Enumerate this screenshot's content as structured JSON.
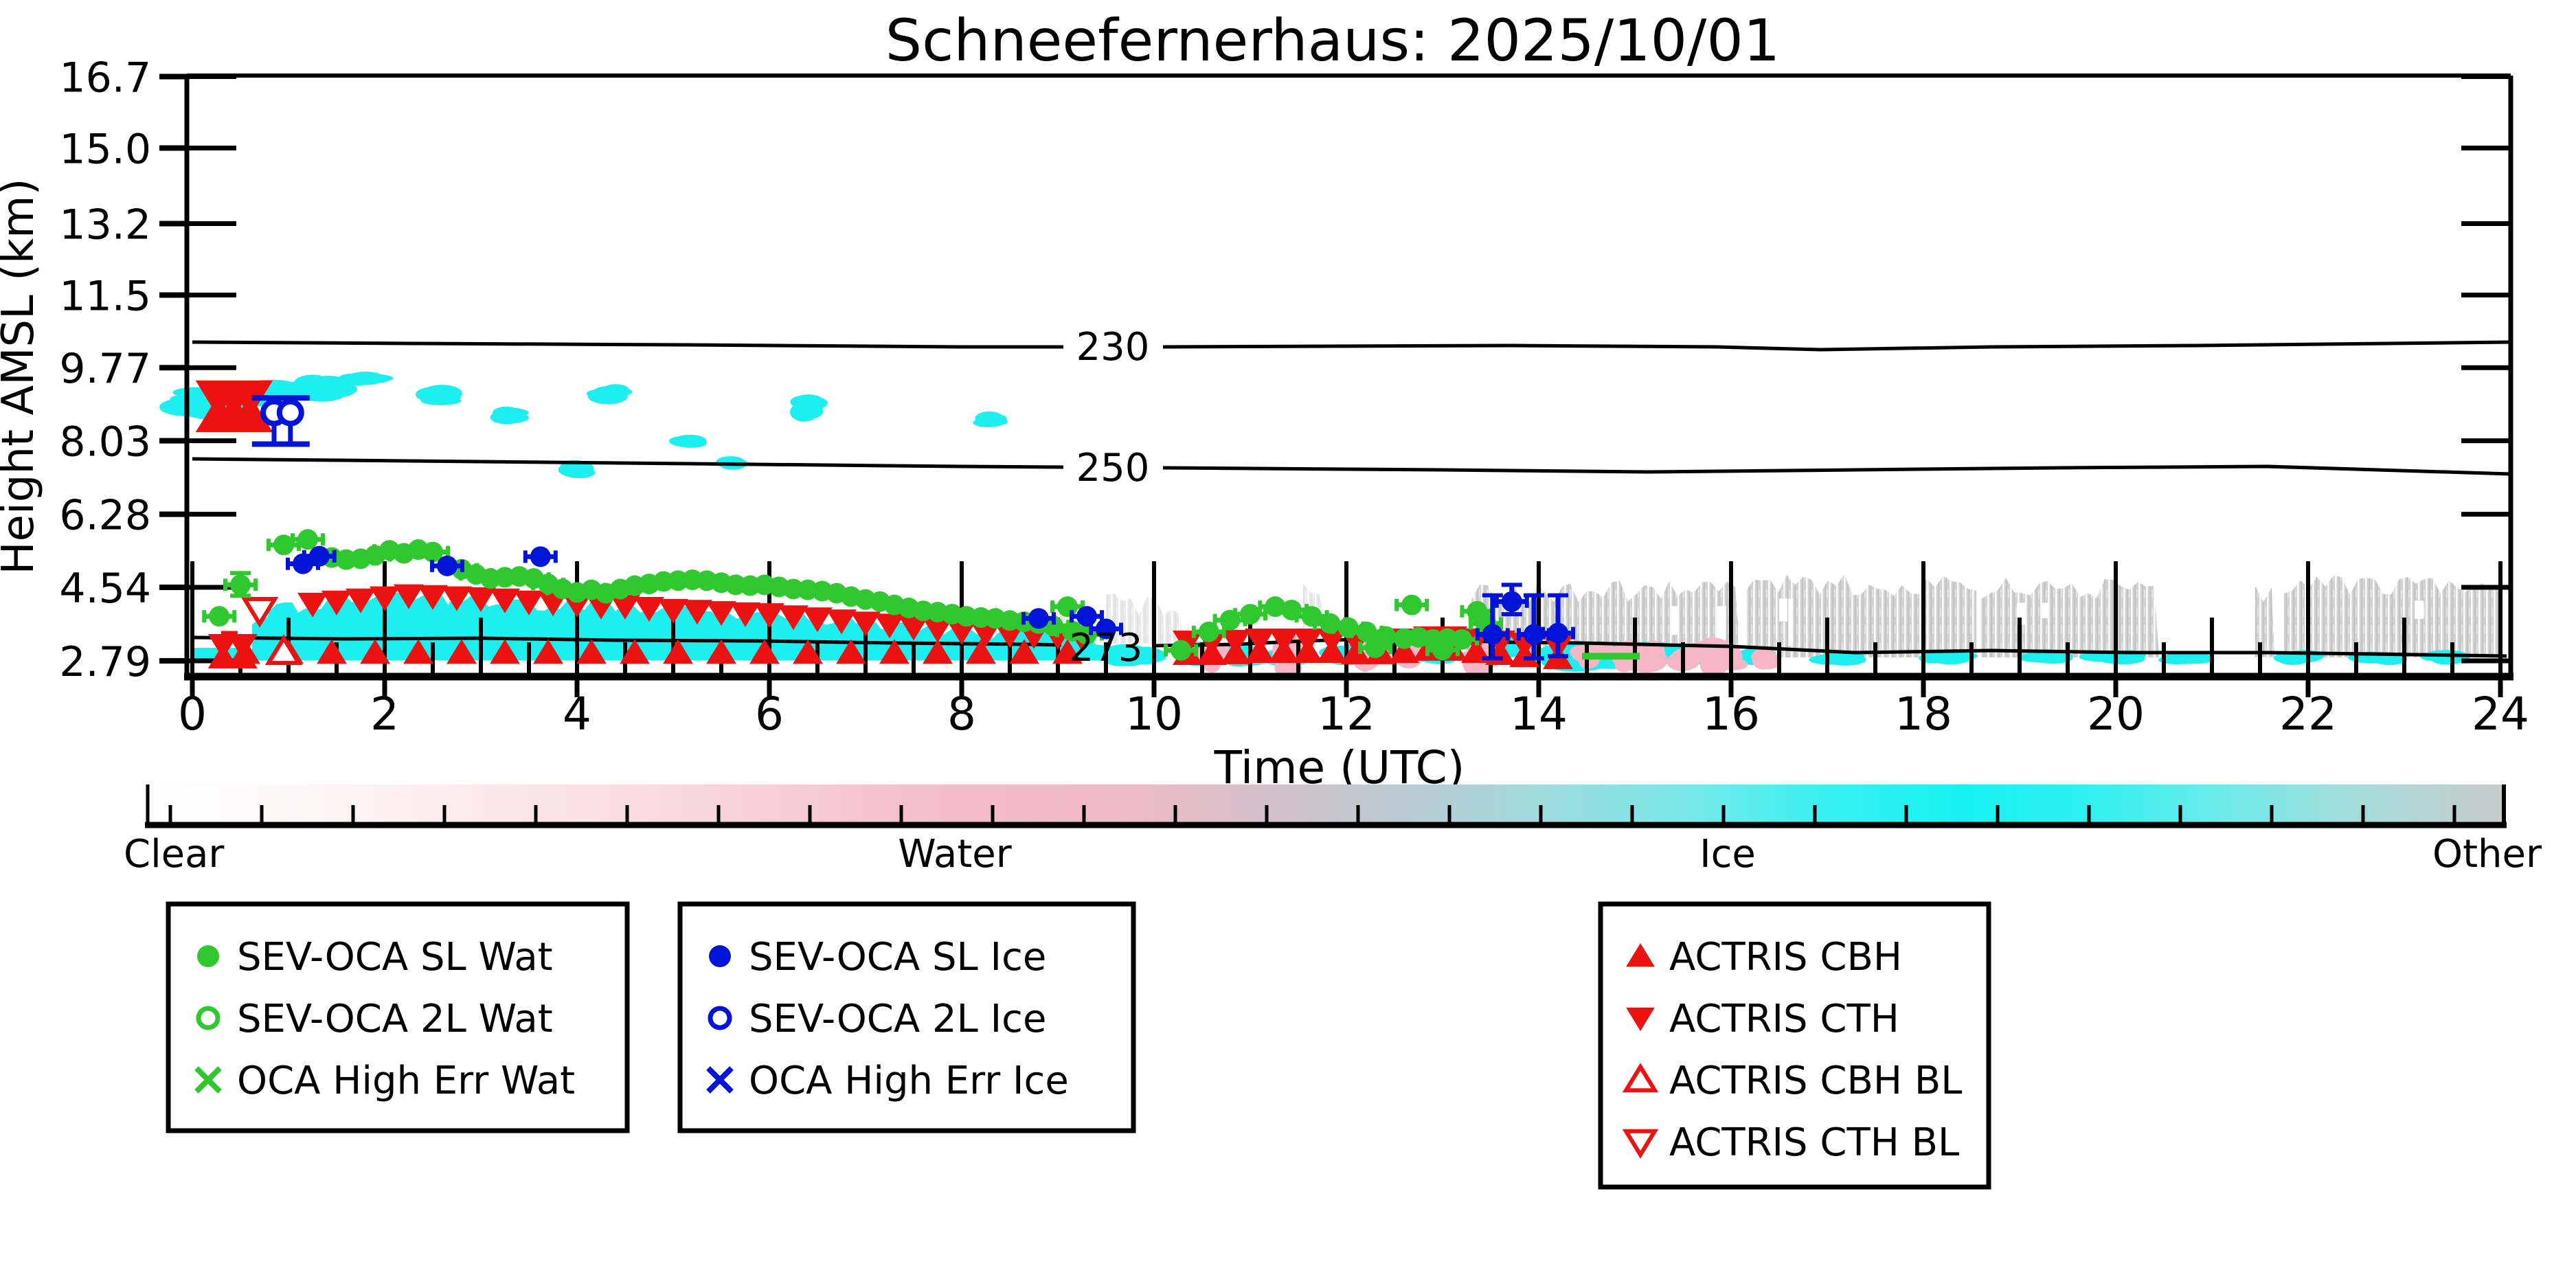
{
  "title": "Schneefernerhaus: 2025/10/01",
  "axes": {
    "ylabel": "Height AMSL (km)",
    "xlabel": "Time (UTC)",
    "ytick_labels": [
      "16.7",
      "15.0",
      "13.2",
      "11.5",
      "9.77",
      "8.03",
      "6.28",
      "4.54",
      "2.79"
    ],
    "ytick_values": [
      16.7,
      15.0,
      13.2,
      11.5,
      9.77,
      8.03,
      6.28,
      4.54,
      2.79
    ],
    "xtick_labels": [
      "0",
      "2",
      "4",
      "6",
      "8",
      "10",
      "12",
      "14",
      "16",
      "18",
      "20",
      "22",
      "24"
    ],
    "xtick_values": [
      0,
      2,
      4,
      6,
      8,
      10,
      12,
      14,
      16,
      18,
      20,
      22,
      24
    ],
    "x_range": [
      0,
      24
    ],
    "y_range": [
      2.79,
      16.73
    ]
  },
  "contours": {
    "labels": [
      "230",
      "250",
      "273"
    ]
  },
  "colorbar": {
    "labels": [
      "Clear",
      "Water",
      "Ice",
      "Other"
    ],
    "colors": {
      "clear": "#ffffff",
      "water": "#f4bac6",
      "ice": "#17f1f2",
      "other": "#c7cbca"
    }
  },
  "legends": [
    {
      "color": "#2fc92f",
      "items": [
        {
          "marker": "filled-circle",
          "label": "SEV-OCA SL Wat"
        },
        {
          "marker": "open-circle",
          "label": "SEV-OCA 2L Wat"
        },
        {
          "marker": "x",
          "label": "OCA High Err Wat"
        }
      ]
    },
    {
      "color": "#0014d8",
      "items": [
        {
          "marker": "filled-circle",
          "label": "SEV-OCA SL Ice"
        },
        {
          "marker": "open-circle",
          "label": "SEV-OCA 2L Ice"
        },
        {
          "marker": "x",
          "label": "OCA High Err Ice"
        }
      ]
    },
    {
      "color": "#ec1212",
      "items": [
        {
          "marker": "tri-up",
          "label": "ACTRIS CBH"
        },
        {
          "marker": "tri-down",
          "label": "ACTRIS CTH"
        },
        {
          "marker": "tri-up-open",
          "label": "ACTRIS CBH BL"
        },
        {
          "marker": "tri-down-open",
          "label": "ACTRIS CTH BL"
        }
      ]
    }
  ],
  "chart_data": {
    "type": "scatter",
    "title": "Schneefernerhaus: 2025/10/01",
    "xlabel": "Time (UTC)",
    "ylabel": "Height AMSL (km)",
    "xlim": [
      0,
      24
    ],
    "ylim": [
      2.79,
      16.73
    ],
    "contour_lines": [
      {
        "label": "230",
        "approx_height_km": 10.3
      },
      {
        "label": "250",
        "approx_height_km": 7.9
      },
      {
        "label": "273",
        "approx_height_km": 3.25
      }
    ],
    "series": [
      {
        "name": "SEV-OCA SL Wat",
        "marker": "filled-circle",
        "color": "#2fc92f",
        "xerr_h": 0.16,
        "points": [
          [
            0.28,
            3.85
          ],
          [
            0.5,
            4.6
          ],
          [
            0.95,
            5.55
          ],
          [
            1.2,
            5.68
          ],
          [
            1.45,
            5.25
          ],
          [
            1.6,
            5.2
          ],
          [
            1.75,
            5.22
          ],
          [
            1.9,
            5.3
          ],
          [
            2.05,
            5.42
          ],
          [
            2.2,
            5.35
          ],
          [
            2.35,
            5.44
          ],
          [
            2.5,
            5.38
          ],
          [
            2.8,
            4.97
          ],
          [
            2.95,
            4.85
          ],
          [
            3.1,
            4.75
          ],
          [
            3.25,
            4.78
          ],
          [
            3.4,
            4.8
          ],
          [
            3.55,
            4.75
          ],
          [
            3.7,
            4.62
          ],
          [
            3.85,
            4.5
          ],
          [
            4.0,
            4.42
          ],
          [
            4.15,
            4.48
          ],
          [
            4.3,
            4.4
          ],
          [
            4.45,
            4.5
          ],
          [
            4.6,
            4.58
          ],
          [
            4.75,
            4.62
          ],
          [
            4.9,
            4.68
          ],
          [
            5.05,
            4.7
          ],
          [
            5.2,
            4.72
          ],
          [
            5.35,
            4.7
          ],
          [
            5.5,
            4.65
          ],
          [
            5.65,
            4.6
          ],
          [
            5.8,
            4.58
          ],
          [
            5.95,
            4.6
          ],
          [
            6.1,
            4.55
          ],
          [
            6.25,
            4.5
          ],
          [
            6.4,
            4.48
          ],
          [
            6.55,
            4.45
          ],
          [
            6.7,
            4.4
          ],
          [
            6.85,
            4.32
          ],
          [
            7.0,
            4.25
          ],
          [
            7.15,
            4.2
          ],
          [
            7.3,
            4.12
          ],
          [
            7.45,
            4.05
          ],
          [
            7.6,
            3.98
          ],
          [
            7.75,
            3.95
          ],
          [
            7.9,
            3.9
          ],
          [
            8.05,
            3.85
          ],
          [
            8.2,
            3.82
          ],
          [
            8.35,
            3.8
          ],
          [
            8.5,
            3.75
          ],
          [
            8.65,
            3.72
          ],
          [
            8.8,
            3.68
          ],
          [
            8.95,
            3.62
          ],
          [
            9.1,
            4.08
          ],
          [
            9.15,
            3.5
          ],
          [
            9.3,
            3.42
          ],
          [
            10.28,
            3.04
          ],
          [
            10.57,
            3.48
          ],
          [
            10.79,
            3.76
          ],
          [
            11.0,
            3.9
          ],
          [
            11.26,
            4.08
          ],
          [
            11.43,
            4.0
          ],
          [
            11.64,
            3.85
          ],
          [
            11.83,
            3.68
          ],
          [
            12.02,
            3.58
          ],
          [
            12.21,
            3.48
          ],
          [
            12.3,
            3.1
          ],
          [
            12.41,
            3.37
          ],
          [
            12.6,
            3.32
          ],
          [
            12.68,
            4.12
          ],
          [
            12.75,
            3.35
          ],
          [
            12.9,
            3.3
          ],
          [
            13.0,
            3.05
          ],
          [
            13.05,
            3.32
          ],
          [
            13.2,
            3.3
          ],
          [
            13.36,
            3.97
          ],
          [
            13.45,
            3.68
          ]
        ]
      },
      {
        "name": "SEV-OCA SL Ice",
        "marker": "filled-circle",
        "color": "#0014d8",
        "xerr_h": 0.16,
        "points": [
          [
            1.15,
            5.1
          ],
          [
            1.32,
            5.28
          ],
          [
            2.65,
            5.05
          ],
          [
            3.62,
            5.27
          ],
          [
            8.8,
            3.8
          ],
          [
            9.3,
            3.85
          ],
          [
            9.5,
            3.55
          ],
          [
            13.52,
            3.42,
            4.35,
            2.85
          ],
          [
            13.72,
            4.2,
            4.6,
            3.9
          ],
          [
            13.95,
            3.42,
            4.35,
            2.85
          ],
          [
            14.2,
            3.45,
            4.35,
            2.9
          ]
        ]
      },
      {
        "name": "SEV-OCA 2L Ice",
        "marker": "open-circle",
        "color": "#0014d8",
        "points": [
          [
            0.85,
            8.7
          ],
          [
            1.02,
            8.7
          ]
        ],
        "err_top_km": 9.05,
        "err_bot_km": 7.95,
        "cap_t0": 0.62,
        "cap_t1": 1.22
      },
      {
        "name": "ACTRIS CBH",
        "marker": "tri-up",
        "color": "#ec1212",
        "height_km": 2.98,
        "times": [
          0.55,
          1.0,
          1.45,
          1.9,
          2.35,
          2.8,
          3.25,
          3.7,
          4.15,
          4.6,
          5.05,
          5.5,
          5.95,
          6.4,
          6.85,
          7.3,
          7.75,
          8.2,
          8.65,
          9.1
        ]
      },
      {
        "name": "ACTRIS CTH",
        "marker": "tri-down",
        "color": "#ec1212",
        "points": [
          [
            1.25,
            4.15
          ],
          [
            1.5,
            4.2
          ],
          [
            1.75,
            4.25
          ],
          [
            2.0,
            4.3
          ],
          [
            2.25,
            4.35
          ],
          [
            2.5,
            4.33
          ],
          [
            2.75,
            4.3
          ],
          [
            3.0,
            4.28
          ],
          [
            3.25,
            4.25
          ],
          [
            3.5,
            4.2
          ],
          [
            3.75,
            4.18
          ],
          [
            4.0,
            4.15
          ],
          [
            4.25,
            4.1
          ],
          [
            4.5,
            4.1
          ],
          [
            4.75,
            4.05
          ],
          [
            5.0,
            4.0
          ],
          [
            5.25,
            3.98
          ],
          [
            5.5,
            3.95
          ],
          [
            5.75,
            3.92
          ],
          [
            6.0,
            3.9
          ],
          [
            6.25,
            3.85
          ],
          [
            6.5,
            3.8
          ],
          [
            6.75,
            3.75
          ],
          [
            7.0,
            3.7
          ],
          [
            7.25,
            3.65
          ],
          [
            7.5,
            3.6
          ],
          [
            7.75,
            3.55
          ],
          [
            8.0,
            3.5
          ],
          [
            8.25,
            3.45
          ],
          [
            8.5,
            3.42
          ],
          [
            8.75,
            3.4
          ],
          [
            9.0,
            3.38
          ],
          [
            9.25,
            3.35
          ]
        ]
      },
      {
        "name": "ACTRIS CBH+CTH pairs high",
        "marker": "bowtie",
        "color": "#ec1212",
        "scale": 1.5,
        "points": [
          [
            0.27,
            8.85
          ],
          [
            0.43,
            8.85
          ],
          [
            0.6,
            8.85
          ]
        ]
      },
      {
        "name": "ACTRIS CBH+CTH pairs low",
        "marker": "bowtie",
        "color": "#ec1212",
        "scale": 1.0,
        "points": [
          [
            0.32,
            3.02
          ],
          [
            0.52,
            3.02
          ],
          [
            10.35,
            3.1
          ],
          [
            10.6,
            3.1
          ],
          [
            10.85,
            3.12
          ],
          [
            11.1,
            3.15
          ],
          [
            11.35,
            3.15
          ],
          [
            11.6,
            3.15
          ],
          [
            11.85,
            3.15
          ],
          [
            12.1,
            3.12
          ],
          [
            12.35,
            3.12
          ],
          [
            12.6,
            3.15
          ],
          [
            12.85,
            3.2
          ],
          [
            13.1,
            3.2
          ],
          [
            13.35,
            3.15
          ],
          [
            13.6,
            3.1
          ],
          [
            13.85,
            3.05
          ],
          [
            14.2,
            3.0
          ]
        ]
      },
      {
        "name": "ACTRIS CTH BL",
        "marker": "tri-down-open",
        "color": "#ec1212",
        "points": [
          [
            0.7,
            4.0
          ]
        ]
      },
      {
        "name": "ACTRIS CBH BL",
        "marker": "tri-up-open",
        "color": "#ec1212",
        "points": [
          [
            0.95,
            3.0
          ]
        ]
      }
    ],
    "extra_marks": {
      "red_dash": {
        "t0": 0.3,
        "t1": 0.47,
        "h": 3.42
      },
      "green_bar": {
        "t0": 14.45,
        "t1": 15.05,
        "h0": 2.82,
        "h1": 2.98
      }
    },
    "class_regions": {
      "ice_main": {
        "bottom_km": 2.8,
        "top_profile": [
          [
            0.62,
            3.6
          ],
          [
            0.8,
            4.0
          ],
          [
            1.1,
            4.1
          ],
          [
            1.5,
            4.2
          ],
          [
            2.0,
            4.3
          ],
          [
            2.5,
            4.3
          ],
          [
            3.0,
            4.25
          ],
          [
            3.5,
            4.18
          ],
          [
            4.0,
            4.12
          ],
          [
            4.5,
            4.08
          ],
          [
            5.0,
            4.0
          ],
          [
            5.5,
            3.95
          ],
          [
            6.0,
            3.88
          ],
          [
            6.5,
            3.8
          ],
          [
            7.0,
            3.7
          ],
          [
            7.5,
            3.6
          ],
          [
            8.0,
            3.5
          ],
          [
            8.5,
            3.45
          ],
          [
            9.0,
            3.38
          ],
          [
            9.55,
            3.3
          ]
        ]
      },
      "ice_left_strip": {
        "t0": 0.02,
        "t1": 0.6,
        "top_km": 3.1,
        "bottom_km": 2.8
      },
      "ice_high_patches": [
        [
          0.05,
          9.0,
          0.5,
          0.45
        ],
        [
          0.55,
          9.1,
          0.75,
          0.5
        ],
        [
          1.3,
          9.3,
          0.35,
          0.3
        ],
        [
          1.75,
          9.45,
          0.25,
          0.18
        ],
        [
          2.55,
          9.05,
          0.15,
          0.25
        ],
        [
          3.3,
          8.65,
          0.1,
          0.15
        ],
        [
          4.35,
          9.15,
          0.14,
          0.2
        ],
        [
          6.4,
          8.85,
          0.08,
          0.28
        ],
        [
          8.3,
          8.5,
          0.06,
          0.14
        ],
        [
          5.15,
          8.0,
          0.1,
          0.1
        ],
        [
          4.0,
          7.35,
          0.06,
          0.18
        ],
        [
          5.6,
          7.5,
          0.05,
          0.1
        ]
      ],
      "ice_low_patches": [
        [
          9.7,
          2.95,
          0.12,
          0.25
        ],
        [
          9.95,
          2.9,
          0.1,
          0.18
        ],
        [
          10.45,
          2.95,
          0.15,
          0.3
        ],
        [
          10.9,
          2.9,
          0.2,
          0.2
        ],
        [
          11.35,
          2.9,
          0.15,
          0.2
        ],
        [
          12.0,
          2.92,
          0.25,
          0.25
        ],
        [
          12.9,
          2.9,
          0.2,
          0.2
        ],
        [
          13.5,
          3.0,
          0.3,
          0.35
        ],
        [
          14.4,
          2.95,
          0.5,
          0.35
        ],
        [
          14.9,
          2.9,
          0.3,
          0.25
        ],
        [
          15.4,
          2.95,
          0.5,
          0.3
        ],
        [
          15.9,
          2.9,
          0.4,
          0.25
        ],
        [
          16.2,
          2.88,
          0.15,
          0.15
        ],
        [
          17.1,
          2.86,
          0.2,
          0.1
        ],
        [
          18.2,
          2.86,
          0.25,
          0.1
        ],
        [
          19.3,
          2.88,
          0.2,
          0.12
        ],
        [
          20.0,
          2.87,
          0.3,
          0.1
        ],
        [
          20.7,
          2.86,
          0.3,
          0.1
        ],
        [
          21.9,
          2.86,
          0.2,
          0.1
        ],
        [
          22.8,
          2.87,
          0.25,
          0.1
        ],
        [
          23.4,
          2.86,
          0.2,
          0.1
        ]
      ],
      "water_patches": [
        [
          10.6,
          2.95,
          0.15,
          0.3
        ],
        [
          11.4,
          3.1,
          0.2,
          0.7
        ],
        [
          12.2,
          3.0,
          0.15,
          0.4
        ],
        [
          12.65,
          3.0,
          0.2,
          0.4
        ],
        [
          13.4,
          3.05,
          0.2,
          0.5
        ],
        [
          14.55,
          2.95,
          0.2,
          0.3
        ],
        [
          15.05,
          3.0,
          0.35,
          0.5
        ],
        [
          15.55,
          2.95,
          0.2,
          0.3
        ],
        [
          15.9,
          3.0,
          0.3,
          0.45
        ],
        [
          16.35,
          2.9,
          0.1,
          0.2
        ]
      ],
      "other_blocks": [
        {
          "t0": 8.35,
          "t1": 9.15,
          "top_km": 3.95,
          "bottom_km": 3.05,
          "sparse": true
        },
        {
          "t0": 9.5,
          "t1": 10.3,
          "top_km": 4.15,
          "bottom_km": 3.2,
          "sparse": true
        },
        {
          "t0": 11.55,
          "t1": 11.78,
          "top_km": 4.45,
          "bottom_km": 3.6,
          "sparse": true
        },
        {
          "t0": 13.3,
          "t1": 16.1,
          "top_km": 4.42,
          "bottom_km": 2.88,
          "sparse": false
        },
        {
          "t0": 16.15,
          "t1": 18.55,
          "top_km": 4.6,
          "bottom_km": 2.87,
          "sparse": false
        },
        {
          "t0": 18.6,
          "t1": 20.45,
          "top_km": 4.5,
          "bottom_km": 2.87,
          "sparse": false
        },
        {
          "t0": 21.45,
          "t1": 21.65,
          "top_km": 4.35,
          "bottom_km": 2.88,
          "sparse": false
        },
        {
          "t0": 21.75,
          "t1": 24.0,
          "top_km": 4.55,
          "bottom_km": 2.87,
          "sparse": false
        }
      ]
    }
  }
}
